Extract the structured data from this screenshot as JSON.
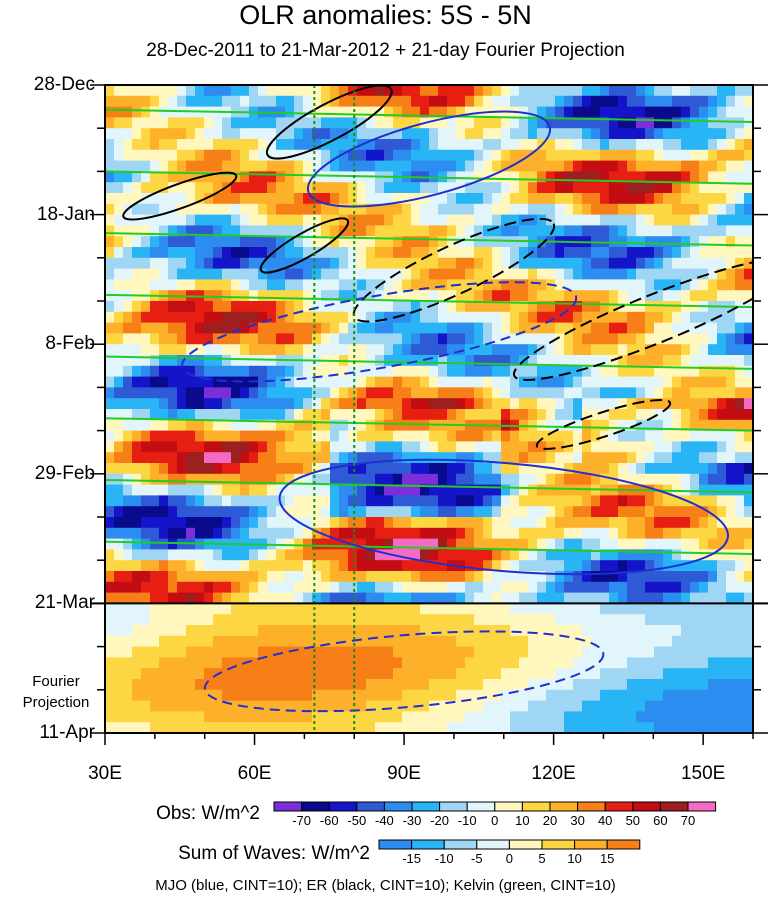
{
  "chart_data": {
    "type": "heatmap",
    "title": "OLR anomalies: 5S - 5N",
    "subtitle": "28-Dec-2011 to 21-Mar-2012 + 21-day Fourier Projection",
    "x_ticks": [
      {
        "value": 30,
        "label": "30E"
      },
      {
        "value": 60,
        "label": "60E"
      },
      {
        "value": 90,
        "label": "90E"
      },
      {
        "value": 120,
        "label": "120E"
      },
      {
        "value": 150,
        "label": "150E"
      }
    ],
    "xlim": [
      30,
      160
    ],
    "y_ticks": [
      {
        "value": 0,
        "label": "28-Dec"
      },
      {
        "value": 21,
        "label": "18-Jan"
      },
      {
        "value": 42,
        "label": "8-Feb"
      },
      {
        "value": 63,
        "label": "29-Feb"
      },
      {
        "value": 84,
        "label": "21-Mar"
      },
      {
        "value": 105,
        "label": "11-Apr"
      }
    ],
    "ylim_days": [
      0,
      105
    ],
    "projection_start_day": 84,
    "projection_label": "Fourier Projection",
    "vertical_reference_lines_lon": [
      72,
      80
    ],
    "obs_legend": {
      "title": "Obs: W/m^2",
      "levels": [
        -70,
        -60,
        -50,
        -40,
        -30,
        -20,
        -10,
        0,
        10,
        20,
        30,
        40,
        50,
        60,
        70
      ],
      "colors": [
        "#7b2ed9",
        "#0a0a8c",
        "#1414c8",
        "#2f5ad6",
        "#2c8cf0",
        "#29b4f5",
        "#9fd6f4",
        "#e1f5fb",
        "#fff7bd",
        "#fdd743",
        "#fdb12a",
        "#f77f18",
        "#e71f12",
        "#c20d12",
        "#9e1f1f",
        "#f46ac4"
      ]
    },
    "waves_legend": {
      "title": "Sum of Waves: W/m^2",
      "levels": [
        -15,
        -10,
        -5,
        0,
        5,
        10,
        15
      ],
      "colors": [
        "#2c8cf0",
        "#29b4f5",
        "#9fd6f4",
        "#e1f5fb",
        "#fff7bd",
        "#fdd743",
        "#fdb12a",
        "#f77f18"
      ]
    },
    "contour_note": "MJO (blue, CINT=10); ER (black, CINT=10); Kelvin (green, CINT=10)",
    "series": [
      {
        "name": "MJO",
        "color": "#1f2fd0",
        "cint": 10
      },
      {
        "name": "ER",
        "color": "#000000",
        "cint": 10
      },
      {
        "name": "Kelvin",
        "color": "#22cc22",
        "cint": 10
      }
    ]
  }
}
